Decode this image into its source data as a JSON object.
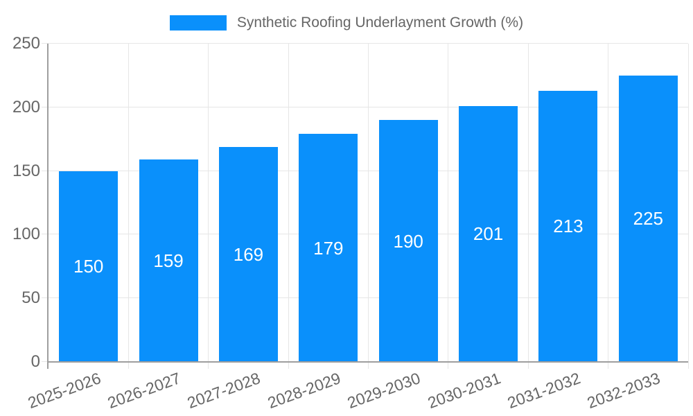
{
  "chart_data": {
    "type": "bar",
    "title": "Synthetic Roofing Underlayment Growth (%)",
    "categories": [
      "2025-2026",
      "2026-2027",
      "2027-2028",
      "2028-2029",
      "2029-2030",
      "2030-2031",
      "2031-2032",
      "2032-2033"
    ],
    "series": [
      {
        "name": "Synthetic Roofing Underlayment Growth (%)",
        "values": [
          150,
          159,
          169,
          179,
          190,
          201,
          213,
          225
        ]
      }
    ],
    "value_labels": [
      150,
      159,
      169,
      179,
      190,
      201,
      213,
      225
    ],
    "xlabel": "",
    "ylabel": "",
    "ylim": [
      0,
      250
    ],
    "yticks": [
      0,
      50,
      100,
      150,
      200,
      250
    ],
    "grid": true,
    "legend": {
      "position": "top",
      "entries": [
        {
          "label": "Synthetic Roofing Underlayment Growth (%)",
          "color": "#0a90fb"
        }
      ]
    },
    "colors": {
      "bar": "#0a90fb",
      "value_label": "#ffffff",
      "grid_line": "#e6e6e6",
      "axis_line": "#9e9e9e",
      "tick_text": "#666666",
      "legend_text": "#666666",
      "background": "#ffffff"
    }
  }
}
